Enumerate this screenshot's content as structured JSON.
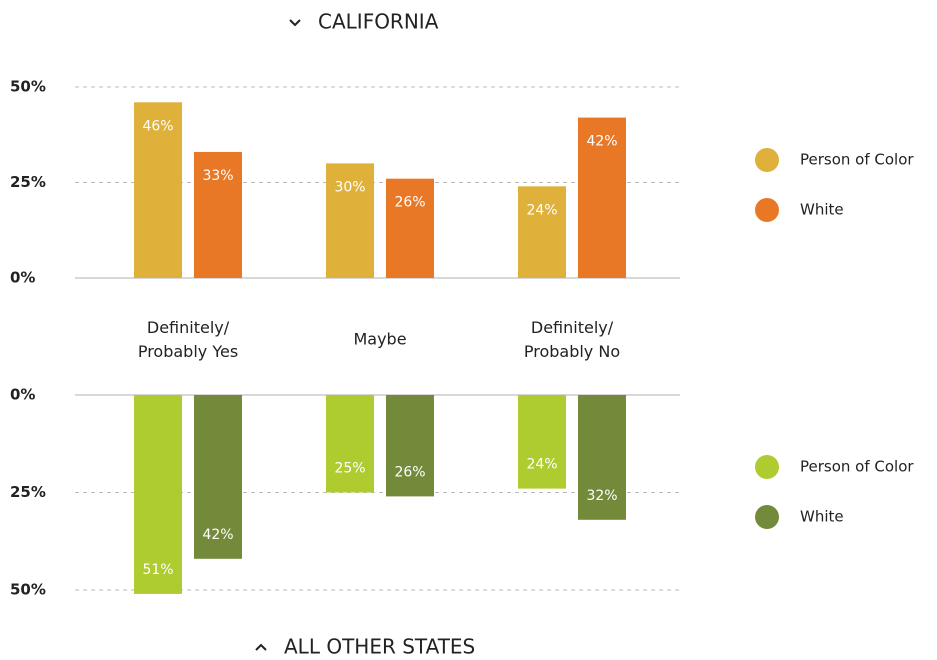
{
  "chart_data": [
    {
      "type": "bar",
      "title": "CALIFORNIA",
      "categories": [
        "Definitely/\nProbably Yes",
        "Maybe",
        "Definitely/\nProbably No"
      ],
      "series": [
        {
          "name": "Person of Color",
          "color": "#dfb03a",
          "values": [
            46,
            30,
            24
          ],
          "value_labels": [
            "46%",
            "30%",
            "24%"
          ]
        },
        {
          "name": "White",
          "color": "#e87826",
          "values": [
            33,
            26,
            42
          ],
          "value_labels": [
            "33%",
            "26%",
            "42%"
          ]
        }
      ],
      "ylim": [
        0,
        50
      ],
      "yticks": [
        {
          "value": 0,
          "label": "0%"
        },
        {
          "value": 25,
          "label": "25%"
        },
        {
          "value": 50,
          "label": "50%"
        }
      ],
      "grid": true,
      "legend": "right"
    },
    {
      "type": "bar",
      "title": "ALL OTHER STATES",
      "series": [
        {
          "name": "Person of Color",
          "color": "#aecb30",
          "values": [
            51,
            25,
            24
          ],
          "value_labels": [
            "51%",
            "25%",
            "24%"
          ]
        },
        {
          "name": "White",
          "color": "#728a3a",
          "values": [
            42,
            26,
            32
          ],
          "value_labels": [
            "42%",
            "26%",
            "32%"
          ]
        }
      ],
      "ylim": [
        0,
        50
      ],
      "yticks": [
        {
          "value": 0,
          "label": "0%"
        },
        {
          "value": 25,
          "label": "25%"
        },
        {
          "value": 50,
          "label": "50%"
        }
      ],
      "inverted": true,
      "grid": true,
      "legend": "right"
    }
  ]
}
